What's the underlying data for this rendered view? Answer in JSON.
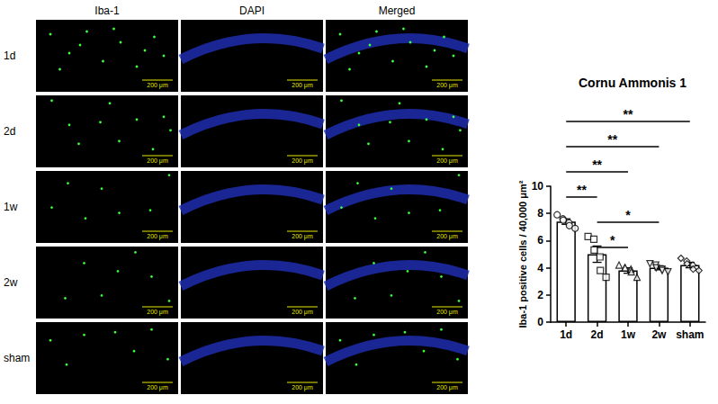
{
  "image_panels": {
    "columns": [
      "Iba-1",
      "DAPI",
      "Merged"
    ],
    "rows": [
      "1d",
      "2d",
      "1w",
      "2w",
      "sham"
    ],
    "scale_bar": "200 μm"
  },
  "chart_data": {
    "type": "bar",
    "title": "Cornu Ammonis 1",
    "y_label": "Iba-1 positive cells / 40,000 μm²",
    "categories": [
      "1d",
      "2d",
      "1w",
      "2w",
      "sham"
    ],
    "values": [
      7.4,
      5.0,
      3.8,
      4.0,
      4.2
    ],
    "errors": [
      0.2,
      0.6,
      0.2,
      0.15,
      0.2
    ],
    "points": [
      {
        "category": "1d",
        "marker": "circle",
        "values": [
          7.9,
          7.6,
          7.5,
          7.3,
          7.1,
          6.9
        ]
      },
      {
        "category": "2d",
        "marker": "square",
        "values": [
          6.3,
          6.1,
          5.3,
          4.8,
          3.8,
          3.3
        ]
      },
      {
        "category": "1w",
        "marker": "triangle",
        "values": [
          4.2,
          4.0,
          4.0,
          3.9,
          3.7,
          3.3
        ]
      },
      {
        "category": "2w",
        "marker": "triangle-down",
        "values": [
          4.3,
          4.2,
          4.0,
          3.9,
          3.8,
          3.7
        ]
      },
      {
        "category": "sham",
        "marker": "diamond",
        "values": [
          4.7,
          4.5,
          4.3,
          4.2,
          3.9,
          3.8
        ]
      }
    ],
    "significance": [
      {
        "from": "2d",
        "to": "1w",
        "label": "*"
      },
      {
        "from": "2d",
        "to": "2w",
        "label": "*"
      },
      {
        "from": "1d",
        "to": "2d",
        "label": "**"
      },
      {
        "from": "1d",
        "to": "1w",
        "label": "**"
      },
      {
        "from": "1d",
        "to": "2w",
        "label": "**"
      },
      {
        "from": "1d",
        "to": "sham",
        "label": "**"
      }
    ],
    "color": "#ffffff",
    "ylim": [
      0,
      10
    ],
    "yticks": [
      0,
      2,
      4,
      6,
      8,
      10
    ],
    "grid": false
  }
}
